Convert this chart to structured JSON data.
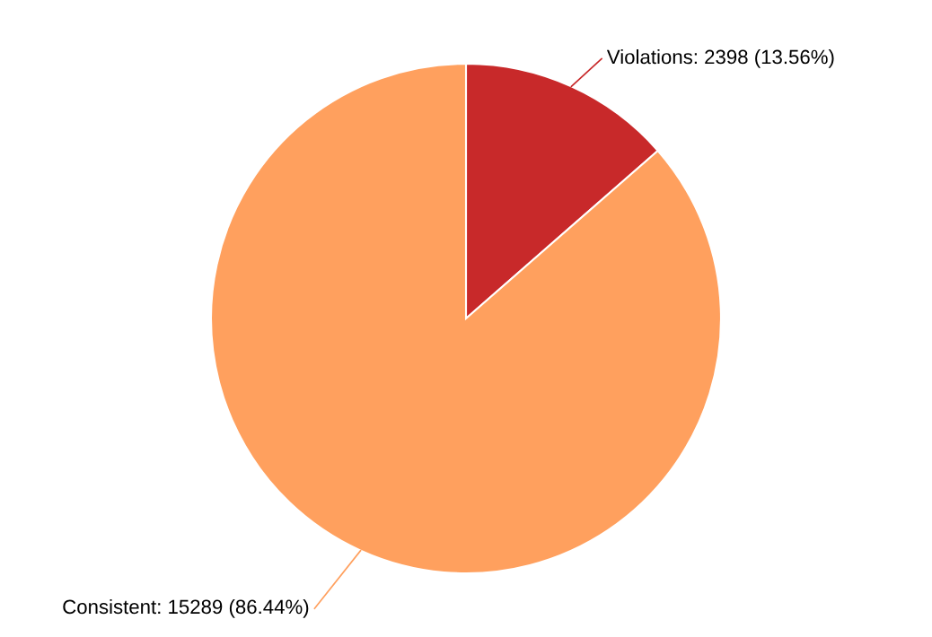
{
  "chart_data": {
    "type": "pie",
    "categories": [
      "Violations",
      "Consistent"
    ],
    "values": [
      2398,
      15289
    ],
    "value_labels": [
      "2398 (13.56%)",
      "15289 (86.44%)"
    ],
    "colors": [
      "#c8292a",
      "#ffa05e"
    ]
  }
}
